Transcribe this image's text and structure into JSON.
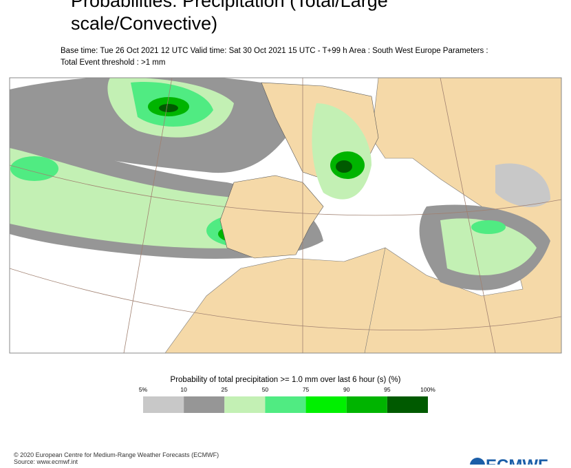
{
  "header": {
    "title_lines": [
      "Probabilities: Precipitation (Total/Large",
      "scale/Convective)"
    ],
    "subtitle_lines": [
      "Base time: Tue 26 Oct 2021 12 UTC Valid time: Sat 30 Oct 2021 15 UTC - T+99 h Area : South West Europe Parameters :",
      "Total Event threshold : >1 mm"
    ]
  },
  "legend": {
    "title": "Probability of total precipitation >= 1.0 mm over last 6 hour (s) (%)",
    "ticks": [
      "5%",
      "10",
      "25",
      "50",
      "75",
      "90",
      "95",
      "100%"
    ],
    "colors": [
      "#c8c8c8",
      "#969696",
      "#c3f0b4",
      "#50eb82",
      "#00f000",
      "#00b400",
      "#005a00"
    ]
  },
  "footer": {
    "lines": [
      "© 2020 European Centre for Medium-Range Weather Forecasts (ECMWF)",
      "Source: www.ecmwf.int"
    ],
    "logo": "ECMWF"
  }
}
